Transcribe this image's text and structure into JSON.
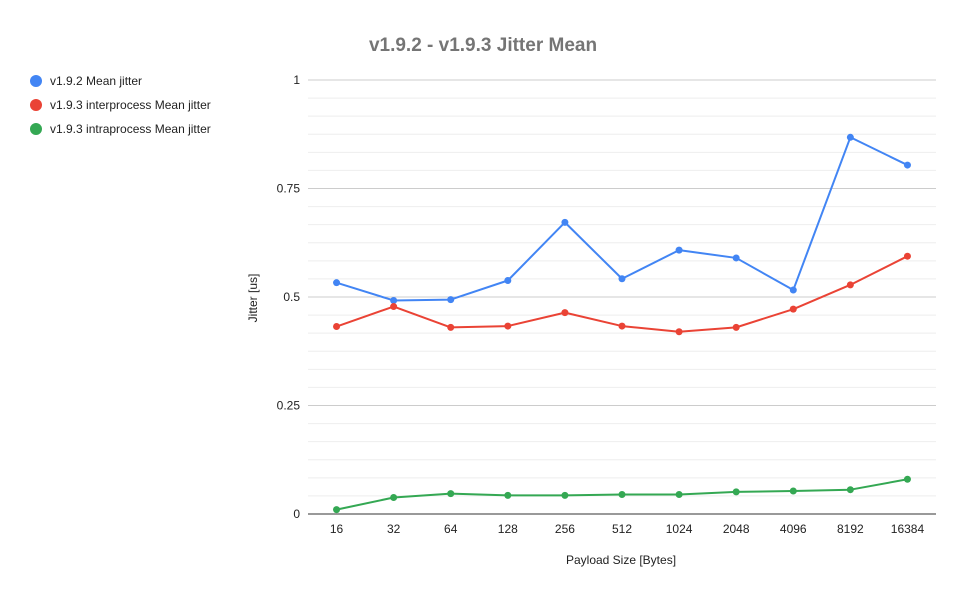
{
  "chart_data": {
    "type": "line",
    "title": "v1.9.2 - v1.9.3 Jitter Mean",
    "xlabel": "Payload Size [Bytes]",
    "ylabel": "Jitter [us]",
    "categories": [
      "16",
      "32",
      "64",
      "128",
      "256",
      "512",
      "1024",
      "2048",
      "4096",
      "8192",
      "16384"
    ],
    "ylim": [
      0,
      1
    ],
    "yticks": [
      0,
      0.25,
      0.5,
      0.75,
      1
    ],
    "ytick_labels": [
      "0",
      "0.25",
      "0.5",
      "0.75",
      "1"
    ],
    "grid": true,
    "legend_position": "left",
    "series": [
      {
        "name": "v1.9.2 Mean jitter",
        "color": "#4285f4",
        "values": [
          0.533,
          0.492,
          0.494,
          0.538,
          0.672,
          0.542,
          0.608,
          0.59,
          0.516,
          0.868,
          0.804
        ]
      },
      {
        "name": "v1.9.3 interprocess Mean jitter",
        "color": "#ea4335",
        "values": [
          0.432,
          0.478,
          0.43,
          0.433,
          0.464,
          0.433,
          0.42,
          0.43,
          0.472,
          0.528,
          0.594
        ]
      },
      {
        "name": "v1.9.3 intraprocess Mean jitter",
        "color": "#34a853",
        "values": [
          0.01,
          0.038,
          0.047,
          0.043,
          0.043,
          0.045,
          0.045,
          0.051,
          0.053,
          0.056,
          0.08
        ]
      }
    ]
  }
}
